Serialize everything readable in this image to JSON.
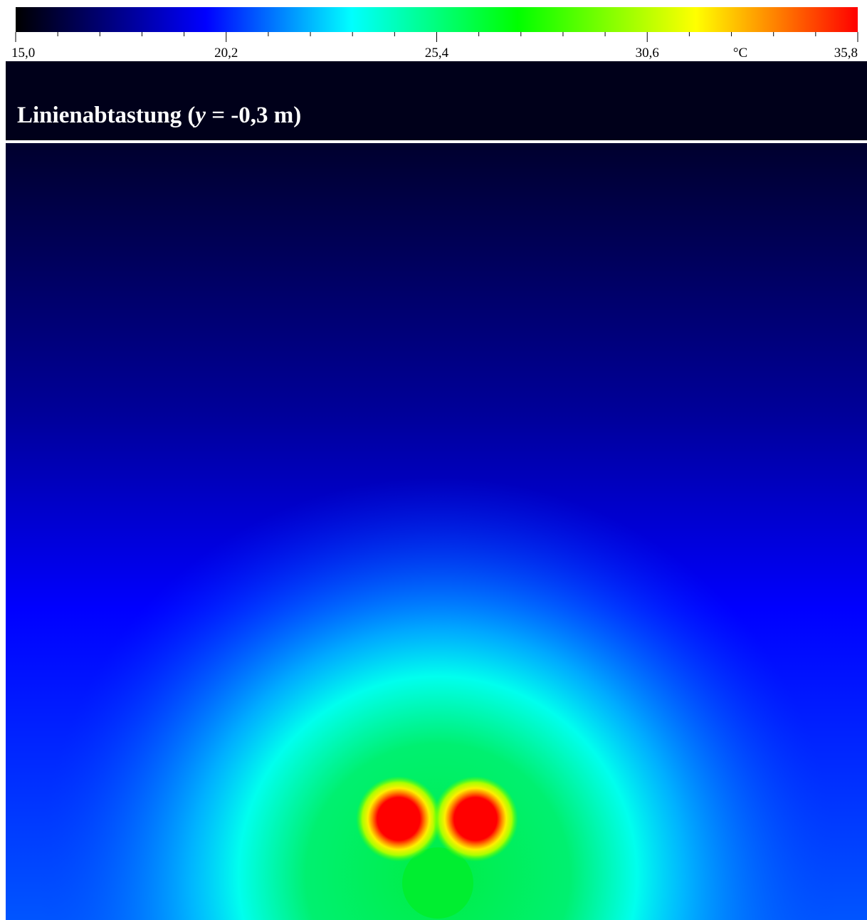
{
  "chart_data": {
    "type": "colorbar-field",
    "title": {
      "prefix": "Linienabtastung (",
      "variable": "y",
      "suffix": " = -0,3 m)"
    },
    "colorbar": {
      "lim": [
        15.0,
        35.8
      ],
      "ticks": [
        {
          "value": 15.0,
          "label": "15,0"
        },
        {
          "value": 20.2,
          "label": "20,2"
        },
        {
          "value": 25.4,
          "label": "25,4"
        },
        {
          "value": 30.6,
          "label": "30,6"
        },
        {
          "value": 35.8,
          "label": "35,8"
        }
      ],
      "minor_ticks": [
        16.04,
        17.08,
        18.12,
        19.16,
        21.24,
        22.28,
        23.32,
        24.36,
        26.44,
        27.48,
        28.52,
        29.56,
        31.64,
        32.68,
        33.72,
        34.76
      ],
      "unit": "°C",
      "colormap": [
        {
          "value": 15.0,
          "color": "#000000"
        },
        {
          "value": 19.7,
          "color": "#0000ff"
        },
        {
          "value": 23.3,
          "color": "#00ffff"
        },
        {
          "value": 27.4,
          "color": "#00ff00"
        },
        {
          "value": 31.8,
          "color": "#ffff00"
        },
        {
          "value": 35.8,
          "color": "#ff0000"
        }
      ]
    }
  }
}
